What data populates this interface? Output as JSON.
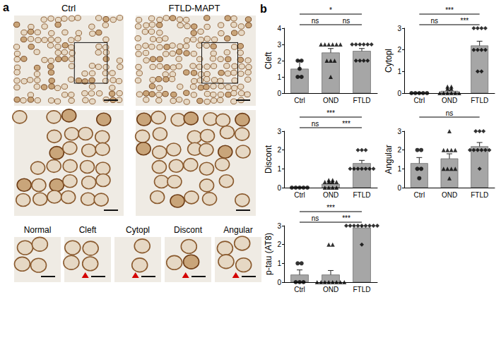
{
  "panels": {
    "a": {
      "label": "a",
      "columns": [
        "Ctrl",
        "FTLD-MAPT"
      ],
      "examples": [
        "Normal",
        "Cleft",
        "Cytopl",
        "Discont",
        "Angular"
      ]
    },
    "b": {
      "label": "b"
    }
  },
  "chart_data": [
    {
      "type": "bar",
      "ylabel": "Cleft",
      "categories": [
        "Ctrl",
        "OND",
        "FTLD"
      ],
      "values": [
        1.5,
        2.5,
        2.6
      ],
      "errors": [
        0.5,
        0.25,
        0.15
      ],
      "color": "#a6a6a6",
      "points": [
        {
          "category": "Ctrl",
          "marker": "circle",
          "values": [
            2,
            2,
            1,
            1,
            1.5
          ]
        },
        {
          "category": "OND",
          "marker": "triangle",
          "values": [
            3,
            3,
            3,
            3,
            3,
            3,
            2,
            2,
            2,
            1
          ]
        },
        {
          "category": "FTLD",
          "marker": "diamond",
          "values": [
            3,
            3,
            3,
            3,
            3,
            3,
            2,
            2,
            2,
            2
          ]
        }
      ],
      "annotations": [
        {
          "from": "Ctrl",
          "to": "FTLD",
          "label": "*"
        },
        {
          "from": "Ctrl",
          "to": "OND",
          "label": "ns"
        },
        {
          "from": "OND",
          "to": "FTLD",
          "label": "ns"
        }
      ],
      "ylim": [
        0,
        4
      ],
      "yticks": [
        0,
        1,
        2,
        3,
        4
      ],
      "grid": false
    },
    {
      "type": "bar",
      "ylabel": "Cytopl",
      "categories": [
        "Ctrl",
        "OND",
        "FTLD"
      ],
      "values": [
        0,
        0.1,
        2.2
      ],
      "errors": [
        0,
        0.05,
        0.2
      ],
      "color": "#a6a6a6",
      "points": [
        {
          "category": "Ctrl",
          "marker": "circle",
          "values": [
            0,
            0,
            0,
            0,
            0
          ]
        },
        {
          "category": "OND",
          "marker": "triangle",
          "values": [
            0,
            0,
            0,
            0,
            0,
            0,
            0.2,
            0.2,
            0.3,
            0.3
          ]
        },
        {
          "category": "FTLD",
          "marker": "diamond",
          "values": [
            3,
            3,
            3,
            3,
            2,
            2,
            2,
            2,
            1,
            1
          ]
        }
      ],
      "annotations": [
        {
          "from": "Ctrl",
          "to": "FTLD",
          "label": "***"
        },
        {
          "from": "Ctrl",
          "to": "OND",
          "label": "ns"
        },
        {
          "from": "OND",
          "to": "FTLD",
          "label": "***"
        }
      ],
      "ylim": [
        0,
        3
      ],
      "yticks": [
        0,
        1,
        2,
        3
      ],
      "grid": false
    },
    {
      "type": "bar",
      "ylabel": "Discont",
      "categories": [
        "Ctrl",
        "OND",
        "FTLD"
      ],
      "values": [
        0,
        0.2,
        1.3
      ],
      "errors": [
        0,
        0.06,
        0.15
      ],
      "color": "#a6a6a6",
      "points": [
        {
          "category": "Ctrl",
          "marker": "circle",
          "values": [
            0,
            0,
            0,
            0,
            0
          ]
        },
        {
          "category": "OND",
          "marker": "triangle",
          "values": [
            0,
            0,
            0,
            0,
            0.3,
            0.3,
            0.3,
            0.3,
            0.4,
            0.4
          ]
        },
        {
          "category": "FTLD",
          "marker": "diamond",
          "values": [
            2,
            2,
            2,
            1,
            1,
            1,
            1,
            1,
            1,
            1
          ]
        }
      ],
      "annotations": [
        {
          "from": "Ctrl",
          "to": "FTLD",
          "label": "***"
        },
        {
          "from": "Ctrl",
          "to": "OND",
          "label": "ns"
        },
        {
          "from": "OND",
          "to": "FTLD",
          "label": "***"
        }
      ],
      "ylim": [
        0,
        3
      ],
      "yticks": [
        0,
        1,
        2,
        3
      ],
      "grid": false
    },
    {
      "type": "bar",
      "ylabel": "Angular",
      "categories": [
        "Ctrl",
        "OND",
        "FTLD"
      ],
      "values": [
        1.3,
        1.55,
        2.2
      ],
      "errors": [
        0.3,
        0.25,
        0.2
      ],
      "color": "#a6a6a6",
      "points": [
        {
          "category": "Ctrl",
          "marker": "circle",
          "values": [
            2,
            2,
            1,
            1,
            0.5
          ]
        },
        {
          "category": "OND",
          "marker": "triangle",
          "values": [
            3,
            2,
            2,
            2,
            2,
            1,
            1,
            1,
            1,
            0.5
          ]
        },
        {
          "category": "FTLD",
          "marker": "diamond",
          "values": [
            3,
            3,
            3,
            2,
            2,
            2,
            2,
            2,
            2,
            1
          ]
        }
      ],
      "annotations": [
        {
          "from": "Ctrl",
          "to": "FTLD",
          "label": "ns"
        }
      ],
      "ylim": [
        0,
        3
      ],
      "yticks": [
        0,
        1,
        2,
        3
      ],
      "grid": false
    },
    {
      "type": "bar",
      "ylabel": "p-tau (AT8)",
      "categories": [
        "Ctrl",
        "OND",
        "FTLD"
      ],
      "values": [
        0.4,
        0.4,
        2.9
      ],
      "errors": [
        0.25,
        0.22,
        0.1
      ],
      "color": "#a6a6a6",
      "points": [
        {
          "category": "Ctrl",
          "marker": "circle",
          "values": [
            1,
            1,
            0,
            0,
            0
          ]
        },
        {
          "category": "OND",
          "marker": "triangle",
          "values": [
            2,
            2,
            0,
            0,
            0,
            0,
            0,
            0,
            0,
            0
          ]
        },
        {
          "category": "FTLD",
          "marker": "diamond",
          "values": [
            3,
            3,
            3,
            3,
            3,
            3,
            3,
            3,
            3,
            2
          ]
        }
      ],
      "annotations": [
        {
          "from": "Ctrl",
          "to": "FTLD",
          "label": "***"
        },
        {
          "from": "Ctrl",
          "to": "OND",
          "label": "ns"
        },
        {
          "from": "OND",
          "to": "FTLD",
          "label": "***"
        }
      ],
      "ylim": [
        0,
        3
      ],
      "yticks": [
        0,
        1,
        2,
        3
      ],
      "grid": false
    }
  ]
}
